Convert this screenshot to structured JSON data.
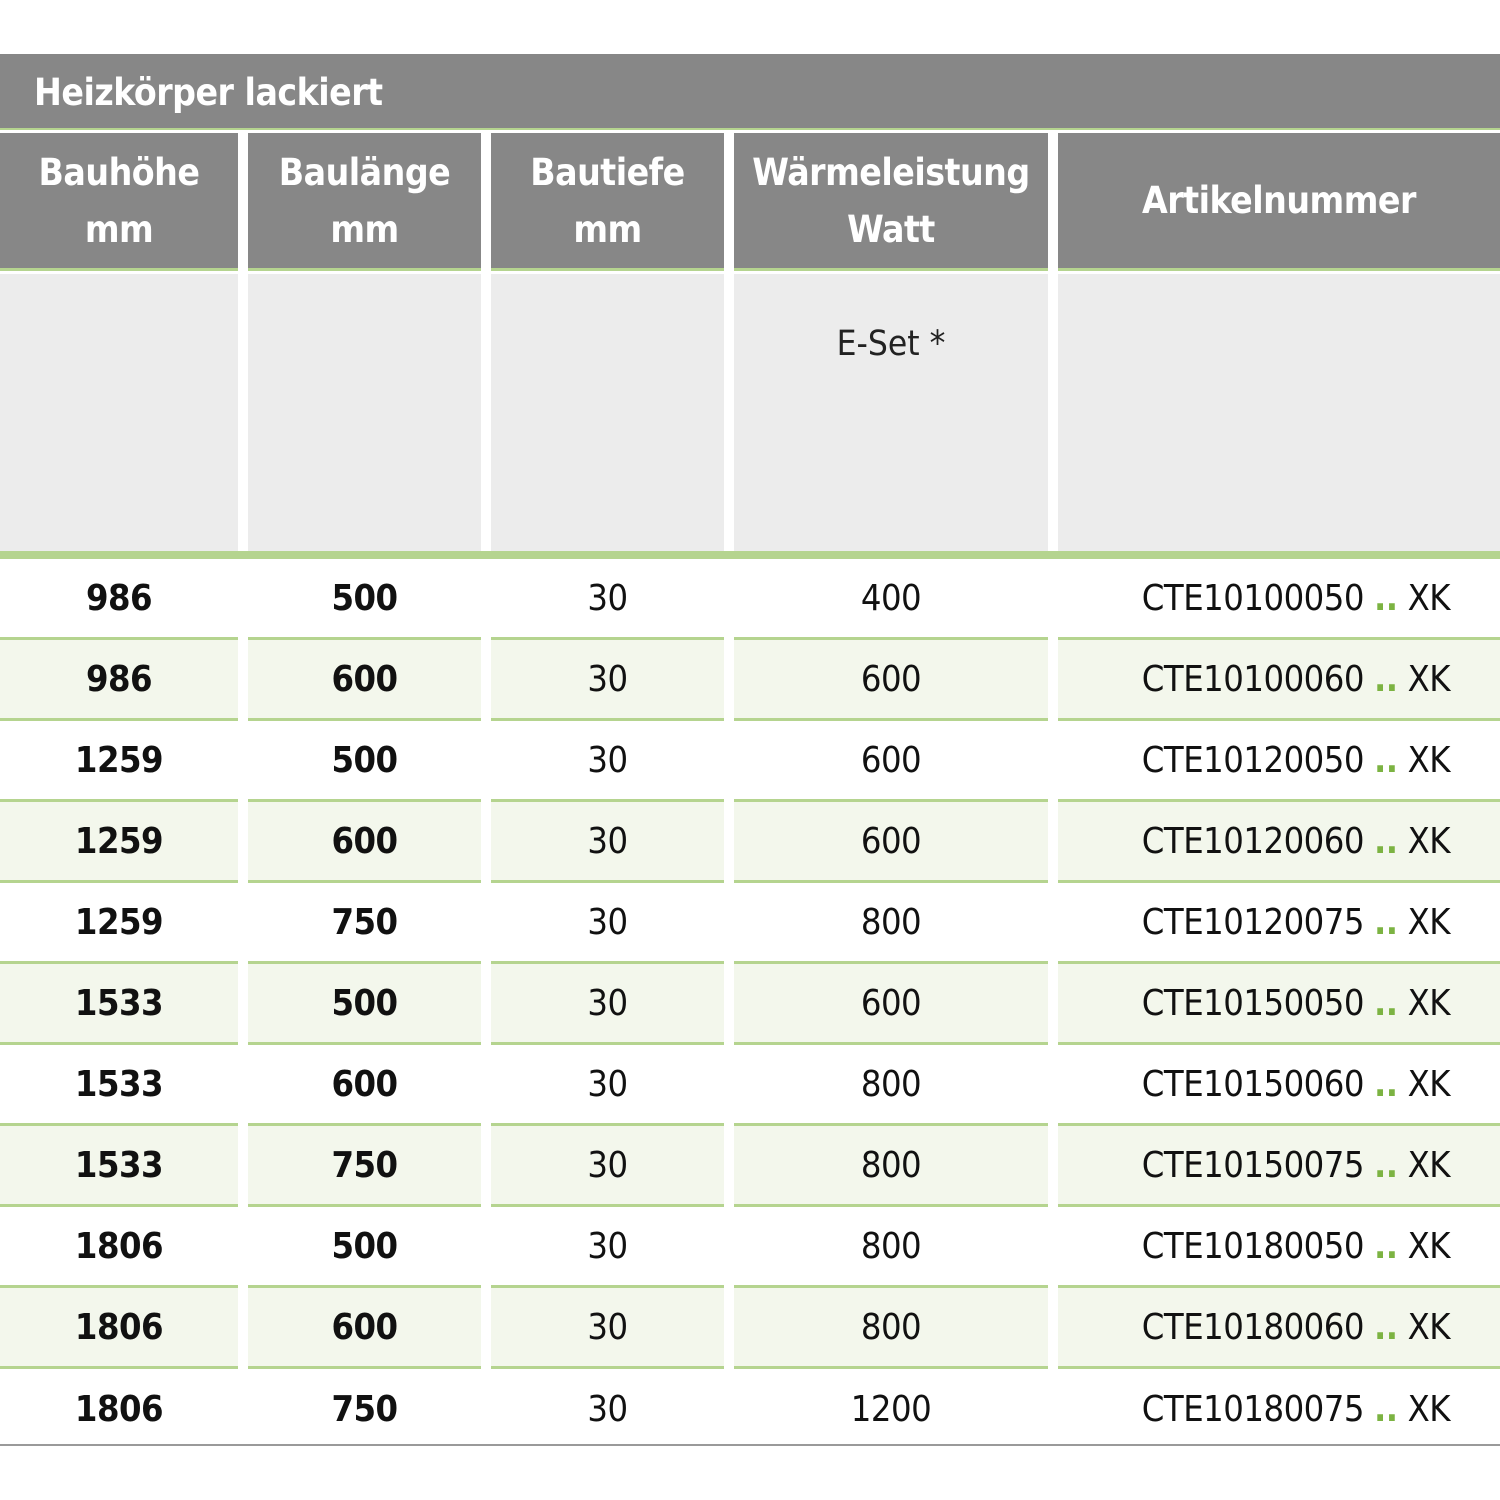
{
  "title": "Heizkörper lackiert",
  "headers": [
    {
      "line1": "Bauhöhe",
      "line2": "mm"
    },
    {
      "line1": "Baulänge",
      "line2": "mm"
    },
    {
      "line1": "Bautiefe",
      "line2": "mm"
    },
    {
      "line1": "Wärmeleistung",
      "line2": "Watt"
    },
    {
      "line1": "Artikelnummer",
      "line2": ""
    }
  ],
  "subheader": {
    "waerme": "E-Set *"
  },
  "accent_color": "#b5d48f",
  "rows": [
    {
      "hoehe": "986",
      "laenge": "500",
      "tiefe": "30",
      "watt": "400",
      "art": "CTE10100050",
      "dots": "..",
      "suffix": "XK"
    },
    {
      "hoehe": "986",
      "laenge": "600",
      "tiefe": "30",
      "watt": "600",
      "art": "CTE10100060",
      "dots": "..",
      "suffix": "XK"
    },
    {
      "hoehe": "1259",
      "laenge": "500",
      "tiefe": "30",
      "watt": "600",
      "art": "CTE10120050",
      "dots": "..",
      "suffix": "XK"
    },
    {
      "hoehe": "1259",
      "laenge": "600",
      "tiefe": "30",
      "watt": "600",
      "art": "CTE10120060",
      "dots": "..",
      "suffix": "XK"
    },
    {
      "hoehe": "1259",
      "laenge": "750",
      "tiefe": "30",
      "watt": "800",
      "art": "CTE10120075",
      "dots": "..",
      "suffix": "XK"
    },
    {
      "hoehe": "1533",
      "laenge": "500",
      "tiefe": "30",
      "watt": "600",
      "art": "CTE10150050",
      "dots": "..",
      "suffix": "XK"
    },
    {
      "hoehe": "1533",
      "laenge": "600",
      "tiefe": "30",
      "watt": "800",
      "art": "CTE10150060",
      "dots": "..",
      "suffix": "XK"
    },
    {
      "hoehe": "1533",
      "laenge": "750",
      "tiefe": "30",
      "watt": "800",
      "art": "CTE10150075",
      "dots": "..",
      "suffix": "XK"
    },
    {
      "hoehe": "1806",
      "laenge": "500",
      "tiefe": "30",
      "watt": "800",
      "art": "CTE10180050",
      "dots": "..",
      "suffix": "XK"
    },
    {
      "hoehe": "1806",
      "laenge": "600",
      "tiefe": "30",
      "watt": "800",
      "art": "CTE10180060",
      "dots": "..",
      "suffix": "XK"
    },
    {
      "hoehe": "1806",
      "laenge": "750",
      "tiefe": "30",
      "watt": "1200",
      "art": "CTE10180075",
      "dots": "..",
      "suffix": "XK"
    }
  ]
}
